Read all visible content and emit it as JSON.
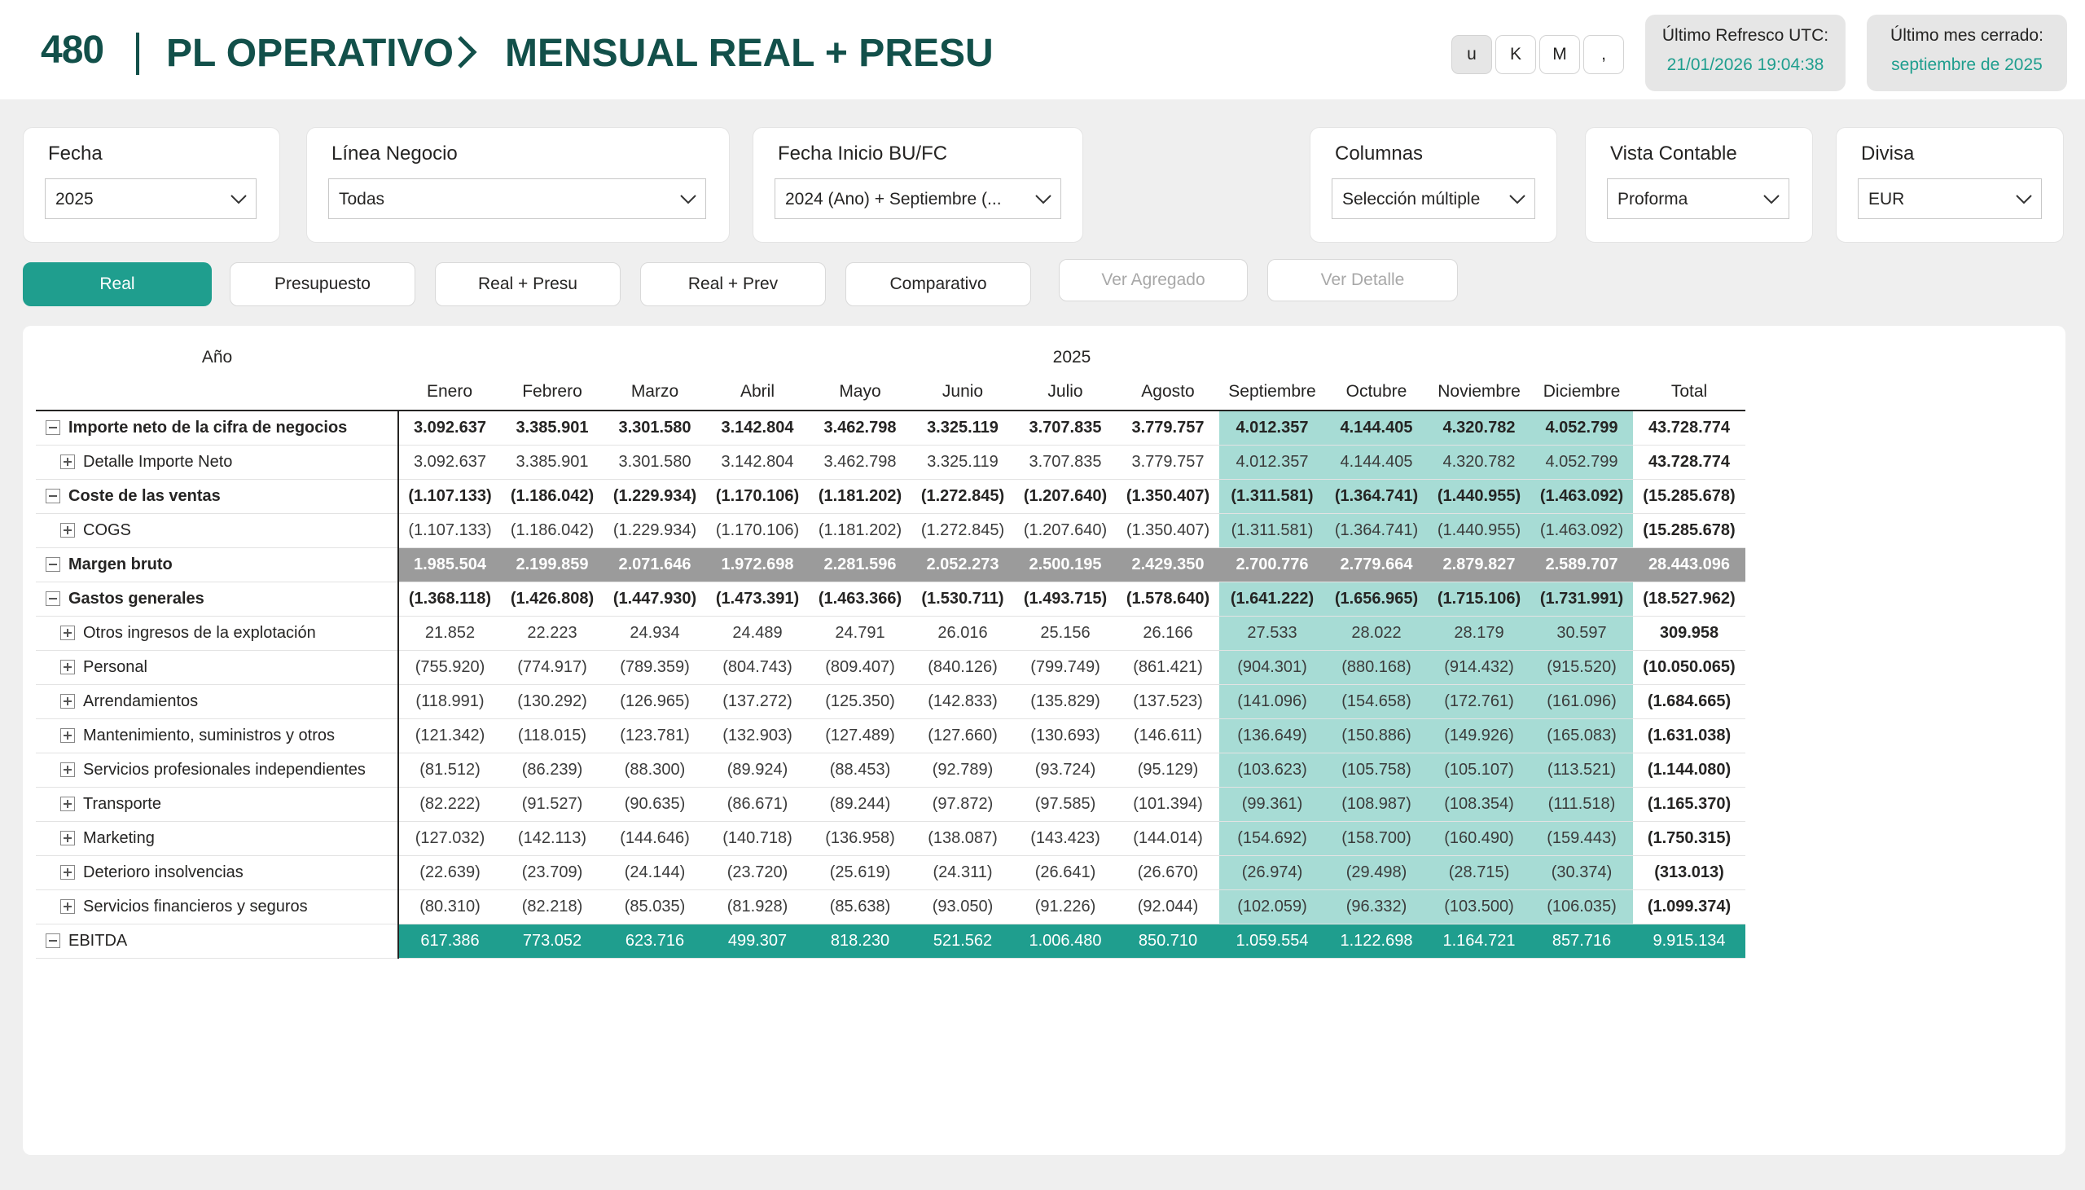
{
  "header": {
    "logo": "480",
    "title": "PL OPERATIVO",
    "subtitle": "MENSUAL REAL + PRESU",
    "unit_buttons": [
      "u",
      "K",
      "M",
      ","
    ],
    "refresh_label": "Último Refresco UTC:",
    "refresh_value": "21/01/2026 19:04:38",
    "closed_label": "Último mes cerrado:",
    "closed_value": "septiembre de 2025"
  },
  "filters": [
    {
      "label": "Fecha",
      "value": "2025"
    },
    {
      "label": "Línea Negocio",
      "value": "Todas"
    },
    {
      "label": "Fecha Inicio BU/FC",
      "value": "2024 (Ano) + Septiembre (..."
    },
    {
      "label": "Columnas",
      "value": "Selección múltiple"
    },
    {
      "label": "Vista Contable",
      "value": "Proforma"
    },
    {
      "label": "Divisa",
      "value": "EUR"
    }
  ],
  "view_buttons": [
    "Real",
    "Presupuesto",
    "Real + Presu",
    "Real + Prev",
    "Comparativo",
    "Ver Agregado",
    "Ver Detalle"
  ],
  "matrix": {
    "year_label": "Año",
    "year_value": "2025",
    "months": [
      "Enero",
      "Febrero",
      "Marzo",
      "Abril",
      "Mayo",
      "Junio",
      "Julio",
      "Agosto",
      "Septiembre",
      "Octubre",
      "Noviembre",
      "Diciembre",
      "Total"
    ],
    "rows": [
      {
        "label": "Importe neto de la cifra de negocios",
        "values": [
          "3.092.637",
          "3.385.901",
          "3.301.580",
          "3.142.804",
          "3.462.798",
          "3.325.119",
          "3.707.835",
          "3.779.757",
          "4.012.357",
          "4.144.405",
          "4.320.782",
          "4.052.799",
          "43.728.774"
        ]
      },
      {
        "label": "Detalle Importe Neto",
        "values": [
          "3.092.637",
          "3.385.901",
          "3.301.580",
          "3.142.804",
          "3.462.798",
          "3.325.119",
          "3.707.835",
          "3.779.757",
          "4.012.357",
          "4.144.405",
          "4.320.782",
          "4.052.799",
          "43.728.774"
        ]
      },
      {
        "label": "Coste de las ventas",
        "values": [
          "(1.107.133)",
          "(1.186.042)",
          "(1.229.934)",
          "(1.170.106)",
          "(1.181.202)",
          "(1.272.845)",
          "(1.207.640)",
          "(1.350.407)",
          "(1.311.581)",
          "(1.364.741)",
          "(1.440.955)",
          "(1.463.092)",
          "(15.285.678)"
        ]
      },
      {
        "label": "COGS",
        "values": [
          "(1.107.133)",
          "(1.186.042)",
          "(1.229.934)",
          "(1.170.106)",
          "(1.181.202)",
          "(1.272.845)",
          "(1.207.640)",
          "(1.350.407)",
          "(1.311.581)",
          "(1.364.741)",
          "(1.440.955)",
          "(1.463.092)",
          "(15.285.678)"
        ]
      },
      {
        "label": "Margen bruto",
        "values": [
          "1.985.504",
          "2.199.859",
          "2.071.646",
          "1.972.698",
          "2.281.596",
          "2.052.273",
          "2.500.195",
          "2.429.350",
          "2.700.776",
          "2.779.664",
          "2.879.827",
          "2.589.707",
          "28.443.096"
        ]
      },
      {
        "label": "Gastos generales",
        "values": [
          "(1.368.118)",
          "(1.426.808)",
          "(1.447.930)",
          "(1.473.391)",
          "(1.463.366)",
          "(1.530.711)",
          "(1.493.715)",
          "(1.578.640)",
          "(1.641.222)",
          "(1.656.965)",
          "(1.715.106)",
          "(1.731.991)",
          "(18.527.962)"
        ]
      },
      {
        "label": "Otros ingresos de la explotación",
        "values": [
          "21.852",
          "22.223",
          "24.934",
          "24.489",
          "24.791",
          "26.016",
          "25.156",
          "26.166",
          "27.533",
          "28.022",
          "28.179",
          "30.597",
          "309.958"
        ]
      },
      {
        "label": "Personal",
        "values": [
          "(755.920)",
          "(774.917)",
          "(789.359)",
          "(804.743)",
          "(809.407)",
          "(840.126)",
          "(799.749)",
          "(861.421)",
          "(904.301)",
          "(880.168)",
          "(914.432)",
          "(915.520)",
          "(10.050.065)"
        ]
      },
      {
        "label": "Arrendamientos",
        "values": [
          "(118.991)",
          "(130.292)",
          "(126.965)",
          "(137.272)",
          "(125.350)",
          "(142.833)",
          "(135.829)",
          "(137.523)",
          "(141.096)",
          "(154.658)",
          "(172.761)",
          "(161.096)",
          "(1.684.665)"
        ]
      },
      {
        "label": "Mantenimiento, suministros y otros",
        "values": [
          "(121.342)",
          "(118.015)",
          "(123.781)",
          "(132.903)",
          "(127.489)",
          "(127.660)",
          "(130.693)",
          "(146.611)",
          "(136.649)",
          "(150.886)",
          "(149.926)",
          "(165.083)",
          "(1.631.038)"
        ]
      },
      {
        "label": "Servicios profesionales independientes",
        "values": [
          "(81.512)",
          "(86.239)",
          "(88.300)",
          "(89.924)",
          "(88.453)",
          "(92.789)",
          "(93.724)",
          "(95.129)",
          "(103.623)",
          "(105.758)",
          "(105.107)",
          "(113.521)",
          "(1.144.080)"
        ]
      },
      {
        "label": "Transporte",
        "values": [
          "(82.222)",
          "(91.527)",
          "(90.635)",
          "(86.671)",
          "(89.244)",
          "(97.872)",
          "(97.585)",
          "(101.394)",
          "(99.361)",
          "(108.987)",
          "(108.354)",
          "(111.518)",
          "(1.165.370)"
        ]
      },
      {
        "label": "Marketing",
        "values": [
          "(127.032)",
          "(142.113)",
          "(144.646)",
          "(140.718)",
          "(136.958)",
          "(138.087)",
          "(143.423)",
          "(144.014)",
          "(154.692)",
          "(158.700)",
          "(160.490)",
          "(159.443)",
          "(1.750.315)"
        ]
      },
      {
        "label": "Deterioro insolvencias",
        "values": [
          "(22.639)",
          "(23.709)",
          "(24.144)",
          "(23.720)",
          "(25.619)",
          "(24.311)",
          "(26.641)",
          "(26.670)",
          "(26.974)",
          "(29.498)",
          "(28.715)",
          "(30.374)",
          "(313.013)"
        ]
      },
      {
        "label": "Servicios financieros y seguros",
        "values": [
          "(80.310)",
          "(82.218)",
          "(85.035)",
          "(81.928)",
          "(85.638)",
          "(93.050)",
          "(91.226)",
          "(92.044)",
          "(102.059)",
          "(96.332)",
          "(103.500)",
          "(106.035)",
          "(1.099.374)"
        ]
      },
      {
        "label": "EBITDA",
        "values": [
          "617.386",
          "773.052",
          "623.716",
          "499.307",
          "818.230",
          "521.562",
          "1.006.480",
          "850.710",
          "1.059.554",
          "1.122.698",
          "1.164.721",
          "857.716",
          "9.915.134"
        ]
      }
    ]
  },
  "colors": {
    "brand": "#12504a",
    "accent": "#1f9e8e",
    "teal_light": "#a7dcd5",
    "gray_row": "#9b9b9b"
  }
}
